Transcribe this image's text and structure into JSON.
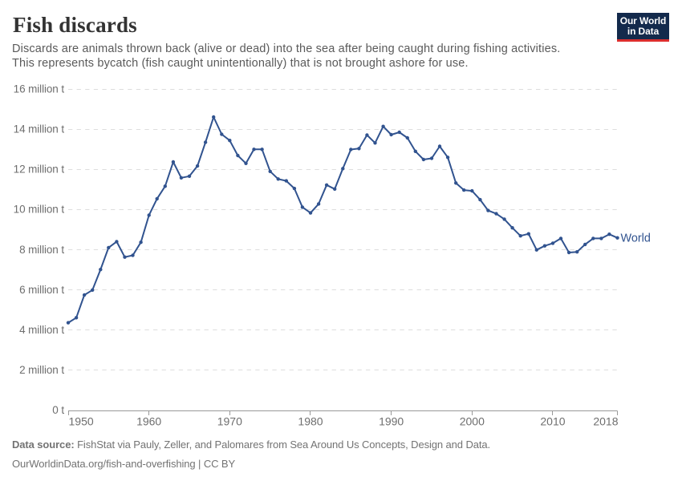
{
  "header": {
    "title": "Fish discards",
    "subtitle_line1": "Discards are animals thrown back (alive or dead) into the sea after being caught during fishing activities.",
    "subtitle_line2": "This represents bycatch (fish caught unintentionally) that is not brought ashore for use.",
    "logo": {
      "line1": "Our World",
      "line2": "in Data",
      "bg_color": "#132a4c",
      "accent_color": "#dc2e2e"
    }
  },
  "chart_data": {
    "type": "line",
    "title": "Fish discards",
    "xlabel": "",
    "ylabel": "",
    "unit": "million t",
    "xlim": [
      1950,
      2018
    ],
    "ylim": [
      0,
      16
    ],
    "grid": "dashed-horizontal",
    "legend_position": "end-of-line",
    "x_ticks": [
      1950,
      1960,
      1970,
      1980,
      1990,
      2000,
      2010,
      2018
    ],
    "y_ticks": [
      {
        "value": 0,
        "label": "0 t"
      },
      {
        "value": 2,
        "label": "2 million t"
      },
      {
        "value": 4,
        "label": "4 million t"
      },
      {
        "value": 6,
        "label": "6 million t"
      },
      {
        "value": 8,
        "label": "8 million t"
      },
      {
        "value": 10,
        "label": "10 million t"
      },
      {
        "value": 12,
        "label": "12 million t"
      },
      {
        "value": 14,
        "label": "14 million t"
      },
      {
        "value": 16,
        "label": "16 million t"
      }
    ],
    "series": [
      {
        "name": "World",
        "color": "#31538f",
        "x": [
          1950,
          1951,
          1952,
          1953,
          1954,
          1955,
          1956,
          1957,
          1958,
          1959,
          1960,
          1961,
          1962,
          1963,
          1964,
          1965,
          1966,
          1967,
          1968,
          1969,
          1970,
          1971,
          1972,
          1973,
          1974,
          1975,
          1976,
          1977,
          1978,
          1979,
          1980,
          1981,
          1982,
          1983,
          1984,
          1985,
          1986,
          1987,
          1988,
          1989,
          1990,
          1991,
          1992,
          1993,
          1994,
          1995,
          1996,
          1997,
          1998,
          1999,
          2000,
          2001,
          2002,
          2003,
          2004,
          2005,
          2006,
          2007,
          2008,
          2009,
          2010,
          2011,
          2012,
          2013,
          2014,
          2015,
          2016,
          2017,
          2018
        ],
        "values": [
          4.37,
          4.62,
          5.75,
          6.0,
          7.02,
          8.11,
          8.41,
          7.64,
          7.73,
          8.38,
          9.73,
          10.55,
          11.17,
          12.38,
          11.59,
          11.67,
          12.18,
          13.36,
          14.62,
          13.76,
          13.45,
          12.7,
          12.31,
          13.01,
          13.01,
          11.91,
          11.53,
          11.44,
          11.06,
          10.13,
          9.84,
          10.29,
          11.23,
          11.03,
          12.05,
          13.0,
          13.05,
          13.72,
          13.33,
          14.15,
          13.74,
          13.86,
          13.58,
          12.91,
          12.5,
          12.56,
          13.16,
          12.61,
          11.33,
          10.98,
          10.94,
          10.5,
          9.96,
          9.8,
          9.53,
          9.1,
          8.7,
          8.8,
          8.0,
          8.2,
          8.33,
          8.57,
          7.87,
          7.9,
          8.27,
          8.57,
          8.57,
          8.78,
          8.6
        ]
      }
    ]
  },
  "footer": {
    "source_label": "Data source:",
    "source_text": "FishStat via Pauly, Zeller, and Palomares from Sea Around Us Concepts, Design and Data.",
    "attribution": "OurWorldinData.org/fish-and-overfishing | CC BY"
  },
  "colors": {
    "line": "#31538f",
    "grid": "#dddddd",
    "axis": "#999999",
    "tick_label": "#6e6e6e",
    "title": "#333333",
    "subtitle": "#5a5a5a",
    "footer": "#737373"
  }
}
